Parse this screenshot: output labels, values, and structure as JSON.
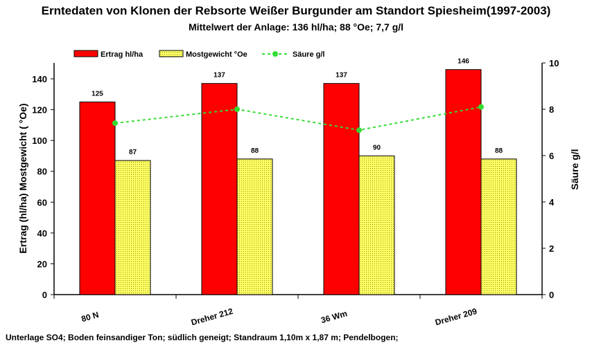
{
  "chart_data": {
    "type": "bar",
    "title": "Erntedaten von Klonen der Rebsorte Weißer Burgunder am Standort Spiesheim(1997-2003)",
    "subtitle": "Mittelwert der Anlage: 136 hl/ha; 88 °Oe; 7,7 g/l",
    "categories": [
      "80 N",
      "Dreher 212",
      "36 Wm",
      "Dreher 209"
    ],
    "series": [
      {
        "name": "Ertrag hl/ha",
        "type": "bar",
        "axis": "left",
        "color": "#ff0000",
        "values": [
          125,
          137,
          137,
          146
        ]
      },
      {
        "name": "Mostgewicht °Oe",
        "type": "bar",
        "axis": "left",
        "color": "#ffff66",
        "values": [
          87,
          88,
          90,
          88
        ]
      },
      {
        "name": "Säure g/l",
        "type": "line",
        "axis": "right",
        "color": "#33dd33",
        "values": [
          7.4,
          8.0,
          7.1,
          8.1
        ]
      }
    ],
    "ylabel": "Ertrag (hl/ha)   Mostgewicht ( °Oe)",
    "y2label": "Säure g/l",
    "ylim": [
      0,
      150
    ],
    "yticks": [
      0,
      20,
      40,
      60,
      80,
      100,
      120,
      140
    ],
    "y2lim": [
      0,
      10
    ],
    "y2ticks": [
      0,
      2,
      4,
      6,
      8,
      10
    ],
    "legend_position": "top",
    "grid": false
  },
  "footer": "Unterlage SO4; Boden feinsandiger Ton; südlich geneigt;  Standraum 1,10m x 1,87 m; Pendelbogen;"
}
